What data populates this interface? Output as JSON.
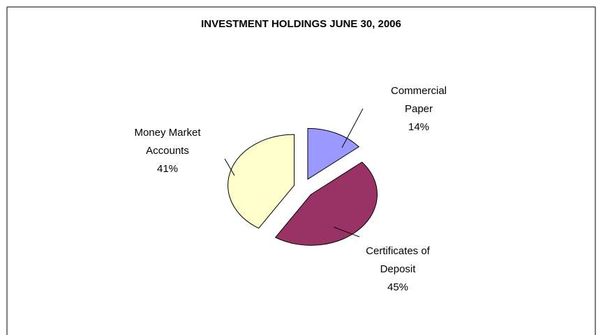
{
  "chart_data": {
    "type": "pie",
    "title": "INVESTMENT HOLDINGS JUNE 30, 2006",
    "categories": [
      "Commercial Paper",
      "Certificates of Deposit",
      "Money Market Accounts"
    ],
    "values": [
      14,
      45,
      41
    ],
    "value_labels": [
      "14%",
      "45%",
      "41%"
    ],
    "colors": [
      "#9999ff",
      "#993366",
      "#ffffcc"
    ]
  }
}
